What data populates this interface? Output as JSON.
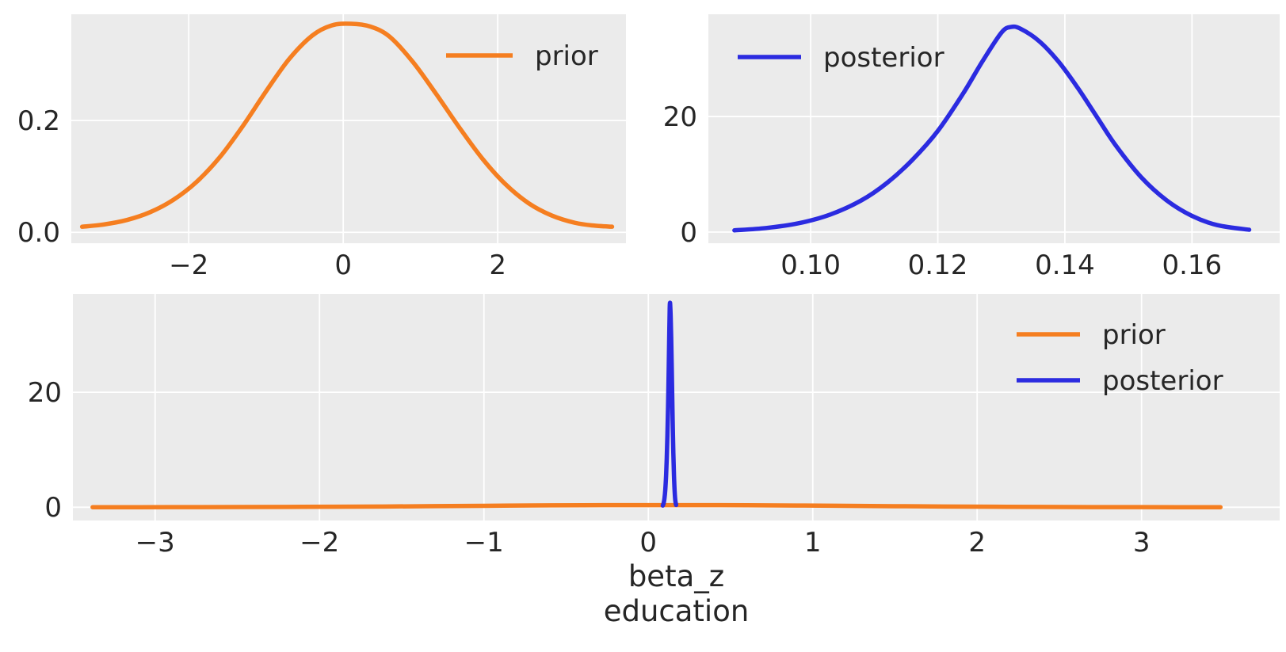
{
  "figure": {
    "background": "#ffffff",
    "axes_background": "#ebebeb",
    "grid_color": "#ffffff",
    "text_color": "#262626",
    "tick_font_size": 34,
    "label_font_size": 37,
    "line_width": 5.5
  },
  "colors": {
    "prior": "#f57e20",
    "posterior": "#2b2be0"
  },
  "chart_data": [
    {
      "name": "prior-marginal",
      "type": "line",
      "title": "",
      "xlabel": "",
      "ylabel": "",
      "grid": true,
      "xlim": [
        -3.52,
        3.66
      ],
      "ylim": [
        -0.0195,
        0.39
      ],
      "xticks": [
        -2,
        0,
        2
      ],
      "xtick_labels": [
        "−2",
        "0",
        "2"
      ],
      "yticks": [
        0.0,
        0.2
      ],
      "ytick_labels": [
        "0.0",
        "0.2"
      ],
      "legend": {
        "position": "upper-right",
        "entries": [
          {
            "label": "prior",
            "series": "prior"
          }
        ]
      },
      "series": [
        {
          "name": "prior",
          "color_key": "prior",
          "x": [
            -3.38,
            -3.1,
            -2.8,
            -2.5,
            -2.2,
            -1.9,
            -1.6,
            -1.3,
            -1.0,
            -0.7,
            -0.4,
            -0.15,
            0.1,
            0.35,
            0.6,
            0.9,
            1.2,
            1.5,
            1.8,
            2.1,
            2.4,
            2.7,
            3.0,
            3.25,
            3.48
          ],
          "y": [
            0.01,
            0.014,
            0.022,
            0.036,
            0.058,
            0.09,
            0.134,
            0.19,
            0.252,
            0.31,
            0.352,
            0.37,
            0.373,
            0.368,
            0.35,
            0.305,
            0.248,
            0.188,
            0.132,
            0.086,
            0.052,
            0.03,
            0.017,
            0.012,
            0.01
          ]
        }
      ]
    },
    {
      "name": "posterior-marginal",
      "type": "line",
      "title": "",
      "xlabel": "",
      "ylabel": "",
      "grid": true,
      "xlim": [
        0.0839,
        0.1738
      ],
      "ylim": [
        -1.93,
        37.7
      ],
      "xticks": [
        0.1,
        0.12,
        0.14,
        0.16
      ],
      "xtick_labels": [
        "0.10",
        "0.12",
        "0.14",
        "0.16"
      ],
      "yticks": [
        0,
        20
      ],
      "ytick_labels": [
        "0",
        "20"
      ],
      "legend": {
        "position": "upper-left",
        "entries": [
          {
            "label": "posterior",
            "series": "posterior"
          }
        ]
      },
      "series": [
        {
          "name": "posterior",
          "color_key": "posterior",
          "x": [
            0.088,
            0.093,
            0.098,
            0.103,
            0.108,
            0.112,
            0.116,
            0.12,
            0.124,
            0.127,
            0.13,
            0.1315,
            0.133,
            0.136,
            0.139,
            0.142,
            0.145,
            0.148,
            0.152,
            0.156,
            0.16,
            0.164,
            0.169
          ],
          "y": [
            0.3,
            0.7,
            1.5,
            3.0,
            5.5,
            8.5,
            12.5,
            17.5,
            24.0,
            29.5,
            34.5,
            35.5,
            35.2,
            33.0,
            29.5,
            25.0,
            20.0,
            15.0,
            9.5,
            5.5,
            2.8,
            1.2,
            0.4
          ]
        }
      ]
    },
    {
      "name": "prior-vs-posterior",
      "type": "line",
      "title": "",
      "xlabel": "beta_z education",
      "xlabel_lines": [
        "beta_z",
        "education"
      ],
      "ylabel": "",
      "grid": true,
      "xlim": [
        -3.5,
        3.84
      ],
      "ylim": [
        -2.3,
        37.1
      ],
      "xticks": [
        -3,
        -2,
        -1,
        0,
        1,
        2,
        3
      ],
      "xtick_labels": [
        "−3",
        "−2",
        "−1",
        "0",
        "1",
        "2",
        "3"
      ],
      "yticks": [
        0,
        20
      ],
      "ytick_labels": [
        "0",
        "20"
      ],
      "legend": {
        "position": "upper-right",
        "entries": [
          {
            "label": "prior",
            "series": "prior"
          },
          {
            "label": "posterior",
            "series": "posterior"
          }
        ]
      },
      "series": [
        {
          "name": "prior",
          "color_key": "prior",
          "x": [
            -3.38,
            -3.1,
            -2.8,
            -2.5,
            -2.2,
            -1.9,
            -1.6,
            -1.3,
            -1.0,
            -0.7,
            -0.4,
            -0.15,
            0.1,
            0.35,
            0.6,
            0.9,
            1.2,
            1.5,
            1.8,
            2.1,
            2.4,
            2.7,
            3.0,
            3.25,
            3.48
          ],
          "y": [
            0.01,
            0.014,
            0.022,
            0.036,
            0.058,
            0.09,
            0.134,
            0.19,
            0.252,
            0.31,
            0.352,
            0.37,
            0.373,
            0.368,
            0.35,
            0.305,
            0.248,
            0.188,
            0.132,
            0.086,
            0.052,
            0.03,
            0.017,
            0.012,
            0.01
          ]
        },
        {
          "name": "posterior",
          "color_key": "posterior",
          "x": [
            0.088,
            0.093,
            0.098,
            0.103,
            0.108,
            0.112,
            0.116,
            0.12,
            0.124,
            0.127,
            0.13,
            0.1315,
            0.133,
            0.136,
            0.139,
            0.142,
            0.145,
            0.148,
            0.152,
            0.156,
            0.16,
            0.164,
            0.169
          ],
          "y": [
            0.3,
            0.7,
            1.5,
            3.0,
            5.5,
            8.5,
            12.5,
            17.5,
            24.0,
            29.5,
            34.5,
            35.5,
            35.2,
            33.0,
            29.5,
            25.0,
            20.0,
            15.0,
            9.5,
            5.5,
            2.8,
            1.2,
            0.4
          ]
        }
      ]
    }
  ]
}
